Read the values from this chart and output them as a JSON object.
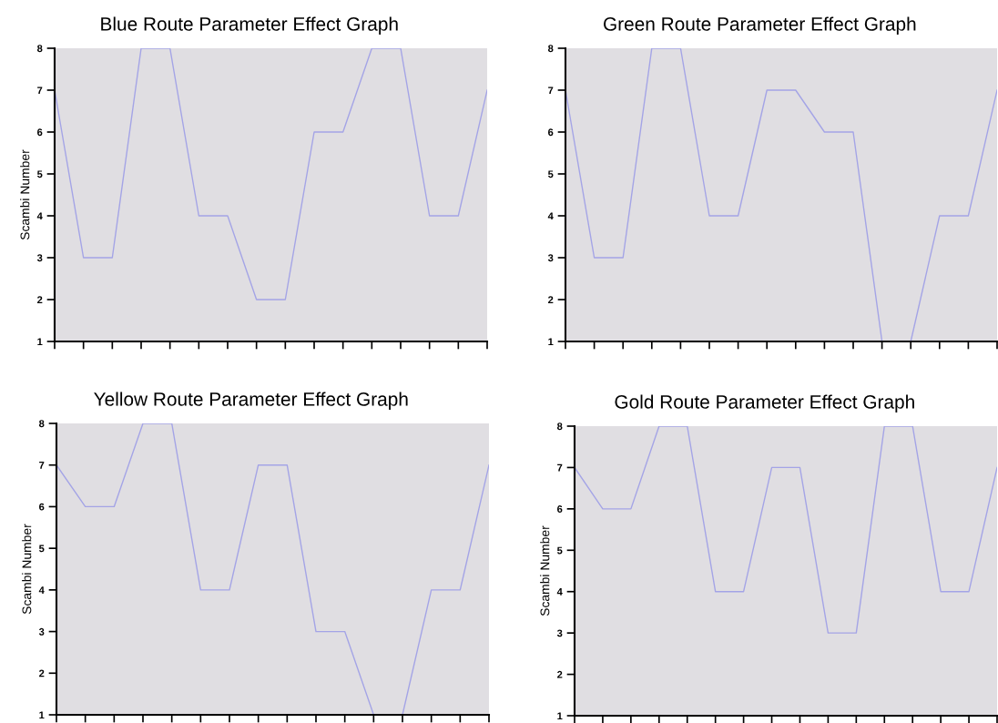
{
  "chart_data": [
    {
      "type": "line",
      "title": "Blue Route Parameter Effect Graph",
      "ylabel": "Scambi Number",
      "categories": [
        null,
        null,
        null,
        null,
        null,
        null,
        null,
        null,
        null,
        null,
        null,
        null,
        null,
        null,
        null,
        null
      ],
      "values": [
        7,
        3,
        3,
        8,
        8,
        4,
        4,
        2,
        2,
        6,
        6,
        8,
        8,
        4,
        4,
        7
      ],
      "color": "#a4a4e6",
      "ylim": [
        1,
        8
      ],
      "yticks": [
        1,
        2,
        3,
        4,
        5,
        6,
        7,
        8
      ],
      "tick_labels": "y",
      "grid": false,
      "legend": false
    },
    {
      "type": "line",
      "title": "Green Route Parameter Effect Graph",
      "categories": [
        null,
        null,
        null,
        null,
        null,
        null,
        null,
        null,
        null,
        null,
        null,
        null,
        null,
        null,
        null,
        null
      ],
      "values": [
        7,
        3,
        3,
        8,
        8,
        4,
        4,
        7,
        7,
        6,
        6,
        1,
        1,
        4,
        4,
        7
      ],
      "color": "#a4a4e6",
      "ylim": [
        1,
        8
      ],
      "yticks": [
        1,
        2,
        3,
        4,
        5,
        6,
        7,
        8
      ],
      "tick_labels": "y",
      "grid": false,
      "legend": false
    },
    {
      "type": "line",
      "title": "Yellow Route Parameter Effect Graph",
      "ylabel": "Scambi Number",
      "categories": [
        null,
        null,
        null,
        null,
        null,
        null,
        null,
        null,
        null,
        null,
        null,
        null,
        null,
        null,
        null,
        null
      ],
      "values": [
        7,
        6,
        6,
        8,
        8,
        4,
        4,
        7,
        7,
        3,
        3,
        1,
        1,
        4,
        4,
        7
      ],
      "color": "#a4a4e6",
      "ylim": [
        1,
        8
      ],
      "yticks": [
        1,
        2,
        3,
        4,
        5,
        6,
        7,
        8
      ],
      "tick_labels": "y",
      "grid": false,
      "legend": false
    },
    {
      "type": "line",
      "title": "Gold Route Parameter Effect Graph",
      "ylabel": "Scambi Number",
      "categories": [
        null,
        null,
        null,
        null,
        null,
        null,
        null,
        null,
        null,
        null,
        null,
        null,
        null,
        null,
        null,
        null
      ],
      "values": [
        7,
        6,
        6,
        8,
        8,
        4,
        4,
        7,
        7,
        3,
        3,
        8,
        8,
        4,
        4,
        7
      ],
      "color": "#a4a4e6",
      "ylim": [
        1,
        8
      ],
      "yticks": [
        1,
        2,
        3,
        4,
        5,
        6,
        7,
        8
      ],
      "tick_labels": "y",
      "grid": false,
      "legend": false
    }
  ]
}
